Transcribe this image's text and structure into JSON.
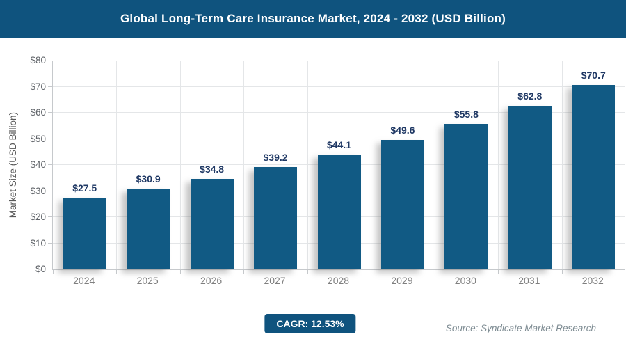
{
  "header": {
    "title": "Global Long-Term Care Insurance Market, 2024 - 2032 (USD Billion)"
  },
  "chart_data": {
    "type": "bar",
    "title": "Global Long-Term Care Insurance Market, 2024 - 2032 (USD Billion)",
    "categories": [
      "2024",
      "2025",
      "2026",
      "2027",
      "2028",
      "2029",
      "2030",
      "2031",
      "2032"
    ],
    "values": [
      27.5,
      30.9,
      34.8,
      39.2,
      44.1,
      49.6,
      55.8,
      62.8,
      70.7
    ],
    "value_labels": [
      "$27.5",
      "$30.9",
      "$34.8",
      "$39.2",
      "$44.1",
      "$49.6",
      "$55.8",
      "$62.8",
      "$70.7"
    ],
    "xlabel": "",
    "ylabel": "Market Size (USD Billion)",
    "ylim": [
      0,
      80
    ],
    "ytick_step": 10,
    "ytick_labels": [
      "$0",
      "$10",
      "$20",
      "$30",
      "$40",
      "$50",
      "$60",
      "$70",
      "$80"
    ],
    "grid": true,
    "legend": "none",
    "bar_color": "#115a84",
    "value_label_color": "#1f3864"
  },
  "footer": {
    "cagr_label": "CAGR: 12.53%",
    "source": "Source: Syndicate Market Research"
  },
  "colors": {
    "header_bg": "#0f537e",
    "badge_bg": "#0f537e",
    "accent_blue": "#115a84"
  }
}
